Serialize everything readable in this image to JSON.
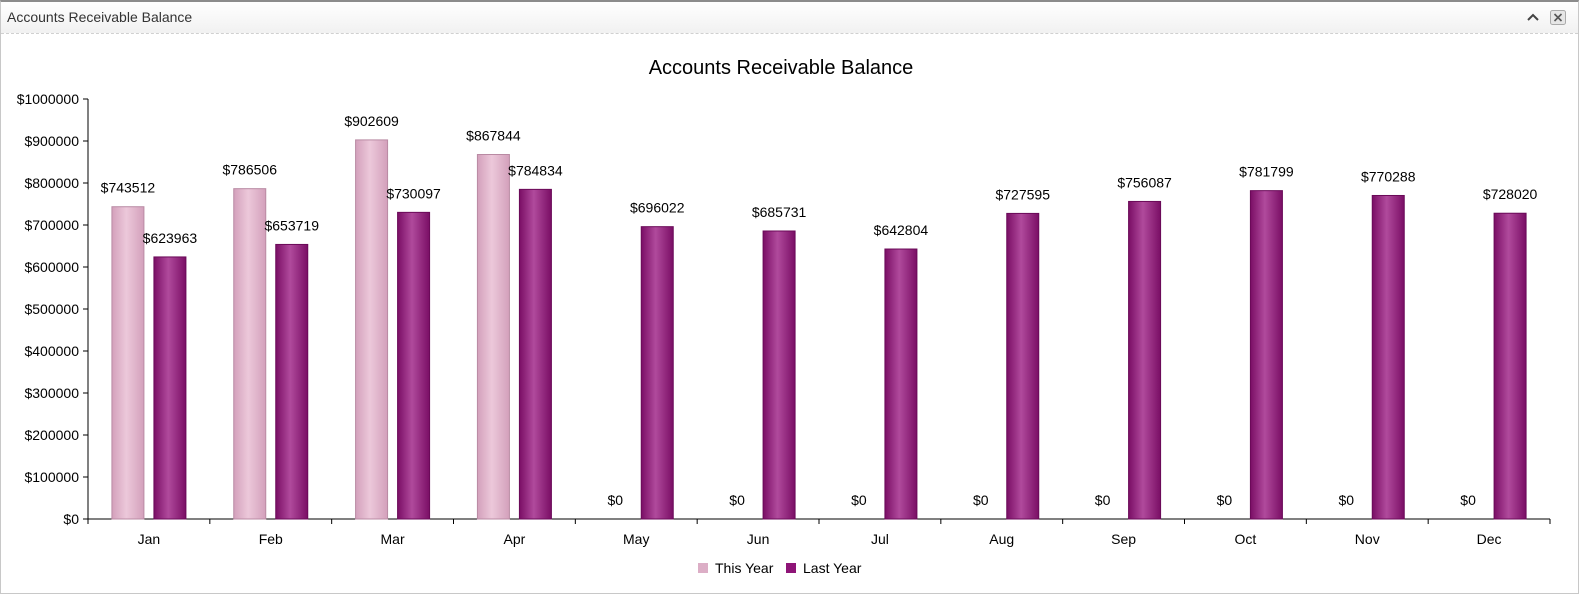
{
  "panel": {
    "title": "Accounts Receivable Balance"
  },
  "icons": {
    "collapse": "chevron-up-icon",
    "close": "close-icon"
  },
  "colors": {
    "this_year": "#dcaec6",
    "last_year": "#8e1477"
  },
  "chart_data": {
    "type": "bar",
    "title": "Accounts Receivable Balance",
    "xlabel": "",
    "ylabel": "",
    "ylim": [
      0,
      1000000
    ],
    "yticks": [
      "$0",
      "$100000",
      "$200000",
      "$300000",
      "$400000",
      "$500000",
      "$600000",
      "$700000",
      "$800000",
      "$900000",
      "$1000000"
    ],
    "categories": [
      "Jan",
      "Feb",
      "Mar",
      "Apr",
      "May",
      "Jun",
      "Jul",
      "Aug",
      "Sep",
      "Oct",
      "Nov",
      "Dec"
    ],
    "series": [
      {
        "name": "This Year",
        "values": [
          743512,
          786506,
          902609,
          867844,
          0,
          0,
          0,
          0,
          0,
          0,
          0,
          0
        ]
      },
      {
        "name": "Last Year",
        "values": [
          623963,
          653719,
          730097,
          784834,
          696022,
          685731,
          642804,
          727595,
          756087,
          781799,
          770288,
          728020
        ]
      }
    ],
    "value_prefix": "$",
    "legend": "bottom-center",
    "grid": false
  }
}
